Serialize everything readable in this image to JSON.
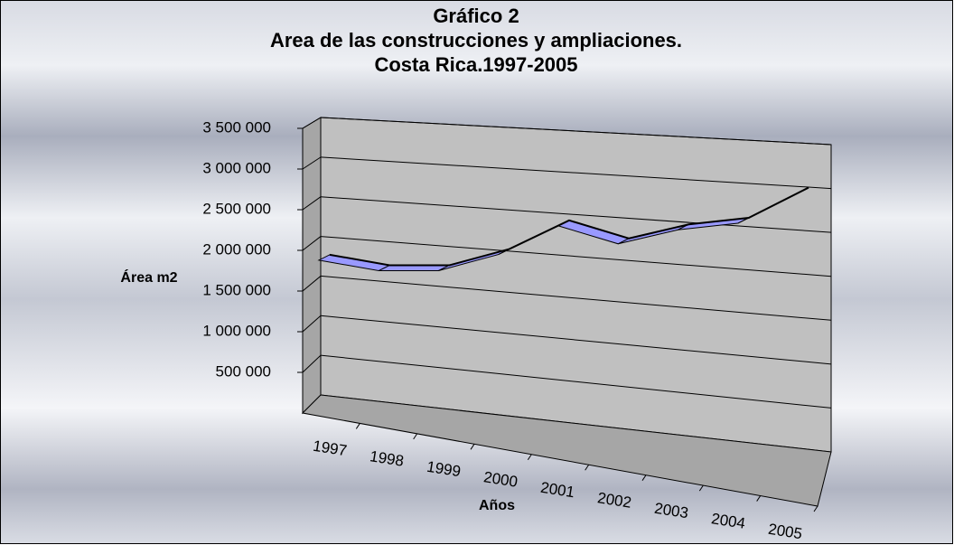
{
  "chart_data": {
    "type": "line",
    "title": "Gráfico 2",
    "subtitle": [
      "Area de las construcciones y ampliaciones.",
      "Costa Rica.1997-2005"
    ],
    "y_label": "Área m2",
    "x_label": "Años",
    "categories": [
      "1997",
      "1998",
      "1999",
      "2000",
      "2001",
      "2002",
      "2003",
      "2004",
      "2005"
    ],
    "values": [
      1870000,
      1790000,
      1840000,
      2080000,
      2460000,
      2290000,
      2490000,
      2600000,
      2970000
    ],
    "color": "#9999ff",
    "ylim": [
      0,
      3500000
    ],
    "yticks": [
      {
        "value": 500000,
        "label": "500 000"
      },
      {
        "value": 1000000,
        "label": "1 000 000"
      },
      {
        "value": 1500000,
        "label": "1 500 000"
      },
      {
        "value": 2000000,
        "label": "2 000 000"
      },
      {
        "value": 2500000,
        "label": "2 500 000"
      },
      {
        "value": 3000000,
        "label": "3 000 000"
      },
      {
        "value": 3500000,
        "label": "3 500 000"
      }
    ],
    "grid": true
  }
}
